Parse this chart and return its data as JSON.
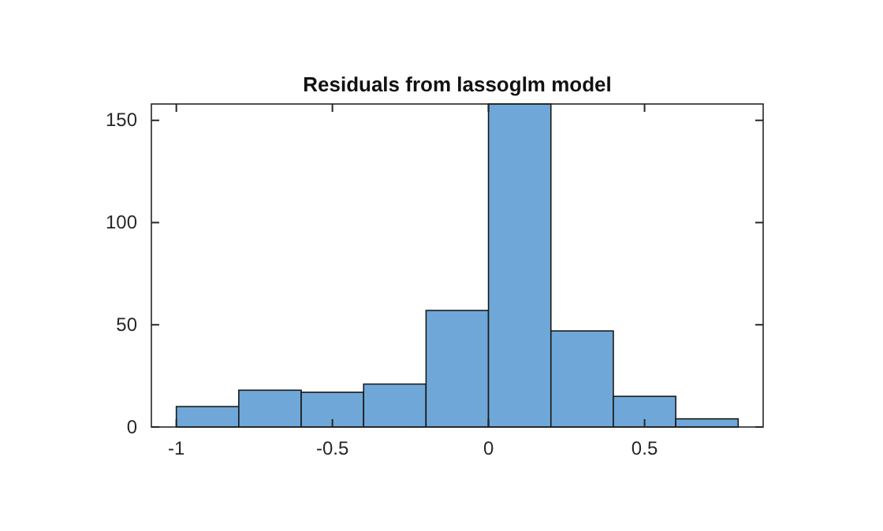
{
  "chart_data": {
    "type": "histogram",
    "title": "Residuals from lassoglm model",
    "bins": [
      -1,
      -0.8,
      -0.6,
      -0.4,
      -0.2,
      0,
      0.2,
      0.4,
      0.6,
      0.8
    ],
    "values": [
      10,
      18,
      17,
      21,
      57,
      158,
      47,
      15,
      4
    ],
    "color": "#6fa8d8",
    "xlim": [
      -1.08,
      0.88
    ],
    "ylim": [
      0,
      158
    ],
    "xticks": [
      -1,
      {
        "value": -0.5,
        "label": "-0.5"
      },
      0,
      0.5
    ],
    "yticks": [
      0,
      50,
      100,
      150
    ]
  }
}
